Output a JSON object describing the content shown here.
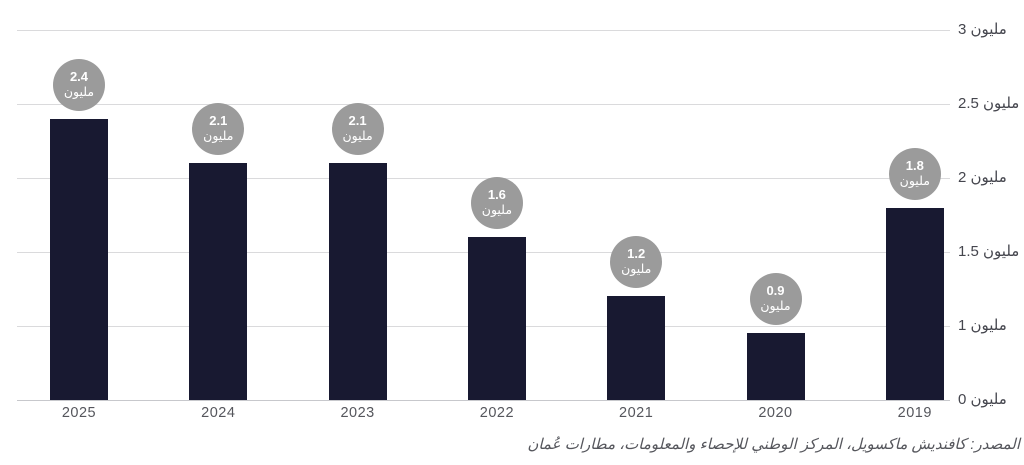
{
  "chart_data": {
    "type": "bar",
    "title": "",
    "unit_word": "مليون",
    "categories": [
      "2025",
      "2024",
      "2023",
      "2022",
      "2021",
      "2020",
      "2019"
    ],
    "values": [
      2.4,
      2.1,
      2.1,
      1.6,
      1.2,
      0.9,
      1.8
    ],
    "bar_label_numbers": [
      "2.4",
      "2.1",
      "2.1",
      "1.6",
      "1.2",
      "0.9",
      "1.8"
    ],
    "y_axis": {
      "side": "right",
      "ticks": [
        3,
        2.5,
        2,
        1.5,
        1,
        0
      ],
      "tick_labels": [
        "3 مليون",
        "2.5 مليون",
        "2 مليون",
        "1.5 مليون",
        "1 مليون",
        "0 مليون"
      ]
    },
    "grid": true,
    "legend": "none",
    "axis_note": "bottom segment 0–1 occupies one gridline step like each 0.5 step above",
    "colors": {
      "bar": "#181931",
      "badge": "#9b9b9b",
      "badge_text": "#ffffff",
      "gridline": "#dadadc",
      "baseline": "#c7c8cc",
      "axis_text": "#45464e",
      "year_text": "#55565c"
    }
  },
  "source_line": "المصدر: كافنديش ماكسويل، المركز الوطني للإحصاء والمعلومات، مطارات عُمان"
}
